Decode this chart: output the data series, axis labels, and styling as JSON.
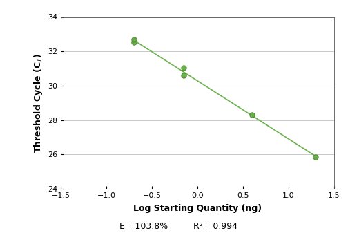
{
  "x_data": [
    -0.699,
    -0.699,
    -0.155,
    -0.155,
    0.602,
    1.301
  ],
  "y_data": [
    32.55,
    32.7,
    31.05,
    30.6,
    28.3,
    25.85
  ],
  "line_color": "#6ab04c",
  "marker_color": "#6ab04c",
  "marker_edge_color": "#4a8a2c",
  "xlabel": "Log Starting Quantity (ng)",
  "ylabel": "Threshold Cycle (C$_T$)",
  "xlim": [
    -1.5,
    1.5
  ],
  "ylim": [
    24,
    34
  ],
  "xticks": [
    -1.5,
    -1.0,
    -0.5,
    0.0,
    0.5,
    1.0,
    1.5
  ],
  "yticks": [
    24,
    26,
    28,
    30,
    32,
    34
  ],
  "annot_E": "E= 103.8%",
  "annot_R2": "R²= 0.994",
  "grid_color": "#c8c8c8",
  "bg_color": "#ffffff",
  "label_fontsize": 9,
  "tick_fontsize": 8,
  "annot_fontsize": 9,
  "line_x_start": -0.699,
  "line_x_end": 1.301
}
